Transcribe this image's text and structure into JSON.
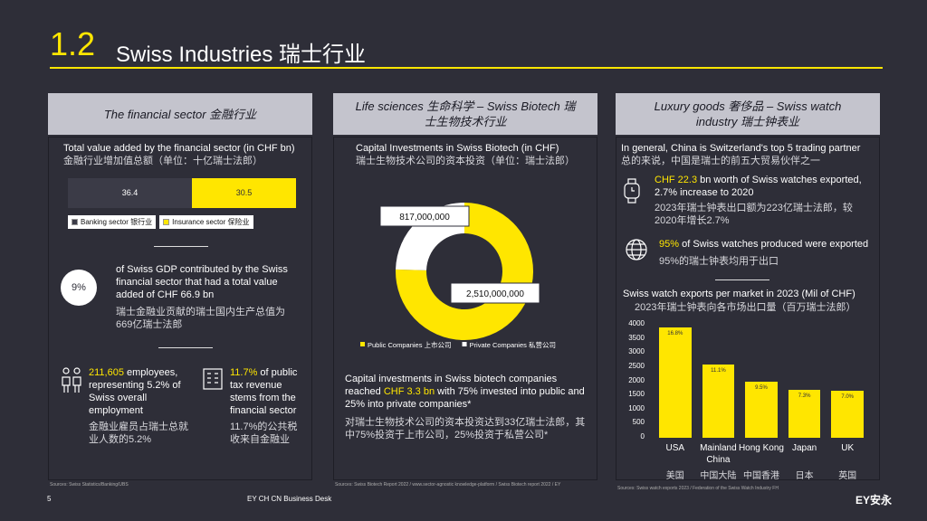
{
  "header": {
    "number": "1.2",
    "title": "Swiss Industries 瑞士行业"
  },
  "footer": {
    "page": "5",
    "desk": "EY CH CN Business Desk",
    "logo": "EY安永"
  },
  "panels": [
    {
      "heading": "The financial sector 金融行业",
      "gdp_share": "9%",
      "gdp_text": "of Swiss GDP contributed by the Swiss financial sector that had a total value added of CHF 66.9 bn",
      "gdp_text_cn": "瑞士金融业贡献的瑞士国内生产总值为669亿瑞士法郎",
      "employees_highlight": "211,605",
      "employees_text": " employees, representing 5.2% of Swiss overall employment",
      "employees_text_cn": "金融业雇员占瑞士总就业人数的5.2%",
      "tax_highlight": "11.7%",
      "tax_text": " of public tax revenue stems from the financial sector",
      "tax_text_cn": "11.7%的公共税收来自金融业",
      "source": "Sources: Swiss Statistics/Banking/UBS"
    },
    {
      "heading": "Life sciences 生命科学 – Swiss Biotech 瑞士生物技术行业",
      "text_before": "Capital investments in Swiss biotech companies reached ",
      "text_highlight": "CHF 3.3 bn",
      "text_after": " with 75% invested into public and 25% into private companies*",
      "text_cn": "对瑞士生物技术公司的资本投资达到33亿瑞士法郎，其中75%投资于上市公司，25%投资于私营公司*",
      "source": "Sources: Swiss Biotech Report 2022 / www.sector-agnostic knowledge-platform / Swiss Biotech report 2022 / EY"
    },
    {
      "heading": "Luxury goods 奢侈品 – Swiss watch industry 瑞士钟表业",
      "intro": "In general, China is Switzerland's top 5 trading partner",
      "intro_cn": "总的来说，中国是瑞士的前五大贸易伙伴之一",
      "export_highlight": "CHF 22.3",
      "export_text": " bn worth of Swiss watches exported, 2.7% increase to 2020",
      "export_text_cn": "2023年瑞士钟表出口额为223亿瑞士法郎，较2020年增长2.7%",
      "share_highlight": "95%",
      "share_text": " of Swiss watches produced were exported",
      "share_text_cn": "95%的瑞士钟表均用于出口",
      "source": "Sources: Swiss watch exports 2023 / Federation of the Swiss Watch Industry FH"
    }
  ],
  "chart_data": [
    {
      "type": "stacked-bar",
      "title": "Total value added by the financial sector (in CHF bn)",
      "subtitle": "金融行业增加值总额（单位：十亿瑞士法郎）",
      "series": [
        {
          "name": "Banking sector 银行业",
          "color": "#3b3b47",
          "values": [
            36.4
          ]
        },
        {
          "name": "Insurance sector 保险业",
          "color": "#ffe600",
          "values": [
            30.5
          ]
        }
      ]
    },
    {
      "type": "donut",
      "title": "Capital Investments in Swiss Biotech (in CHF)",
      "subtitle": "瑞士生物技术公司的资本投资（单位：瑞士法郎）",
      "categories": [
        "Public Companies 上市公司",
        "Private Companies 私营公司"
      ],
      "values": [
        2510000000,
        817000000
      ],
      "value_labels": [
        "2,510,000,000",
        "817,000,000"
      ],
      "colors": [
        "#ffe600",
        "#ffffff"
      ]
    },
    {
      "type": "bar",
      "title": "Swiss watch exports per market in 2023 (Mil of CHF)",
      "subtitle": "2023年瑞士钟表向各市场出口量（百万瑞士法郎）",
      "categories": [
        "USA",
        "Mainland China",
        "Hong Kong",
        "Japan",
        "UK"
      ],
      "categories_cn": [
        "美国",
        "中国大陆",
        "中国香港",
        "日本",
        "英国"
      ],
      "values": [
        3900,
        2600,
        2000,
        1700,
        1650
      ],
      "shares": [
        "16.8%",
        "11.1%",
        "9.5%",
        "7.3%",
        "7.0%"
      ],
      "color": "#ffe600",
      "ylim": [
        0,
        4000
      ],
      "yticks": [
        0,
        500,
        1000,
        1500,
        2000,
        2500,
        3000,
        3500,
        4000
      ]
    }
  ]
}
